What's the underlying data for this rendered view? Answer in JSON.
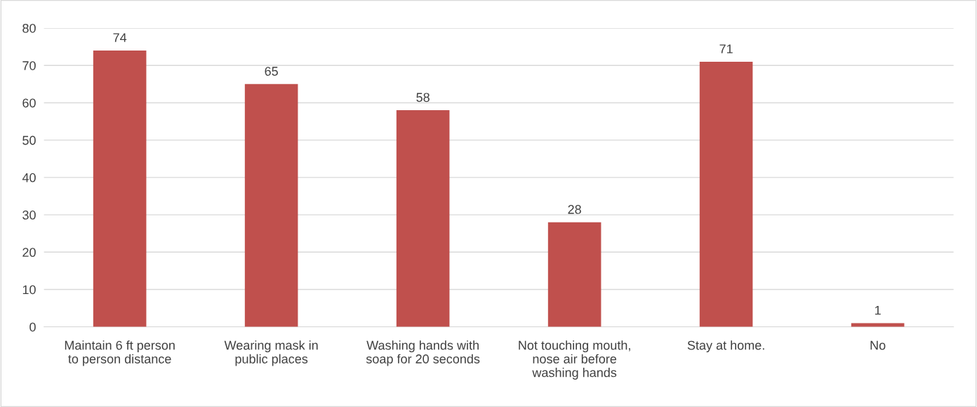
{
  "chart_data": {
    "type": "bar",
    "categories": [
      "Maintain 6 ft person\nto person distance",
      "Wearing mask in\npublic places",
      "Washing hands with\nsoap for 20 seconds",
      "Not touching mouth,\nnose air before\nwashing hands",
      "Stay at home.",
      "No"
    ],
    "values": [
      74,
      65,
      58,
      28,
      71,
      1
    ],
    "color": "#c0504d",
    "ylim": [
      0,
      80
    ],
    "yticks": [
      0,
      10,
      20,
      30,
      40,
      50,
      60,
      70,
      80
    ],
    "grid": "y",
    "data_labels": true
  }
}
